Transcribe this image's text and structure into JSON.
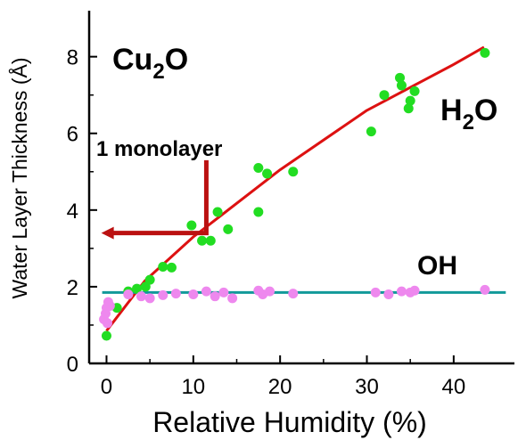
{
  "chart_data": {
    "type": "scatter",
    "xlabel": "Relative Humidity (%)",
    "ylabel": "Water Layer Thickness (Å)",
    "xlim": [
      -2,
      47
    ],
    "ylim": [
      0,
      9.2
    ],
    "x_ticks": [
      0,
      10,
      20,
      30,
      40
    ],
    "y_ticks": [
      0,
      2,
      4,
      6,
      8
    ],
    "series": [
      {
        "name": "H2O",
        "color": "#22dd22",
        "points": [
          [
            0,
            0.72
          ],
          [
            1.2,
            1.45
          ],
          [
            2.5,
            1.88
          ],
          [
            3.5,
            1.95
          ],
          [
            4.5,
            2.0
          ],
          [
            5,
            2.18
          ],
          [
            6.5,
            2.52
          ],
          [
            7.5,
            2.5
          ],
          [
            9.8,
            3.6
          ],
          [
            11,
            3.2
          ],
          [
            12,
            3.2
          ],
          [
            12.8,
            3.95
          ],
          [
            14,
            3.5
          ],
          [
            17.5,
            3.95
          ],
          [
            17.5,
            5.1
          ],
          [
            18.5,
            4.95
          ],
          [
            21.5,
            5.0
          ],
          [
            30.5,
            6.05
          ],
          [
            32,
            7.0
          ],
          [
            33.8,
            7.45
          ],
          [
            34,
            7.25
          ],
          [
            34.8,
            6.65
          ],
          [
            35,
            6.85
          ],
          [
            35.5,
            7.1
          ],
          [
            43.6,
            8.1
          ]
        ]
      },
      {
        "name": "OH",
        "color": "#ee88ee",
        "points": [
          [
            -0.3,
            1.15
          ],
          [
            -0.1,
            1.3
          ],
          [
            0,
            1.45
          ],
          [
            0.2,
            1.6
          ],
          [
            0.1,
            1.05
          ],
          [
            0.4,
            1.5
          ],
          [
            2.5,
            1.8
          ],
          [
            4,
            1.75
          ],
          [
            5,
            1.7
          ],
          [
            6.5,
            1.78
          ],
          [
            8,
            1.82
          ],
          [
            10,
            1.8
          ],
          [
            11.5,
            1.88
          ],
          [
            12.5,
            1.75
          ],
          [
            13.5,
            1.85
          ],
          [
            14.5,
            1.7
          ],
          [
            17.5,
            1.9
          ],
          [
            18,
            1.8
          ],
          [
            18.8,
            1.88
          ],
          [
            21.5,
            1.82
          ],
          [
            31,
            1.85
          ],
          [
            32.5,
            1.8
          ],
          [
            34,
            1.88
          ],
          [
            35,
            1.85
          ],
          [
            35.5,
            1.9
          ],
          [
            43.6,
            1.92
          ]
        ]
      }
    ],
    "fit_lines": [
      {
        "color": "#dd1111",
        "points": [
          [
            0,
            0.85
          ],
          [
            4.4,
            2.15
          ],
          [
            10,
            3.3
          ],
          [
            20,
            5.05
          ],
          [
            30,
            6.6
          ],
          [
            40,
            7.8
          ],
          [
            43.5,
            8.25
          ]
        ]
      },
      {
        "color": "#119999",
        "points": [
          [
            -0.5,
            1.85
          ],
          [
            46,
            1.85
          ]
        ]
      }
    ],
    "annotations": {
      "material": {
        "main": "Cu",
        "sub": "2",
        "end": "O"
      },
      "h2o": {
        "main": "H",
        "sub": "2",
        "end": "O"
      },
      "oh": "OH",
      "monolayer": "1 monolayer"
    },
    "monolayer_arrow": {
      "color": "#bb1111",
      "y": 3.4,
      "tip_x": -0.6,
      "corner_x": 11.5,
      "top_y": 5.3
    }
  }
}
